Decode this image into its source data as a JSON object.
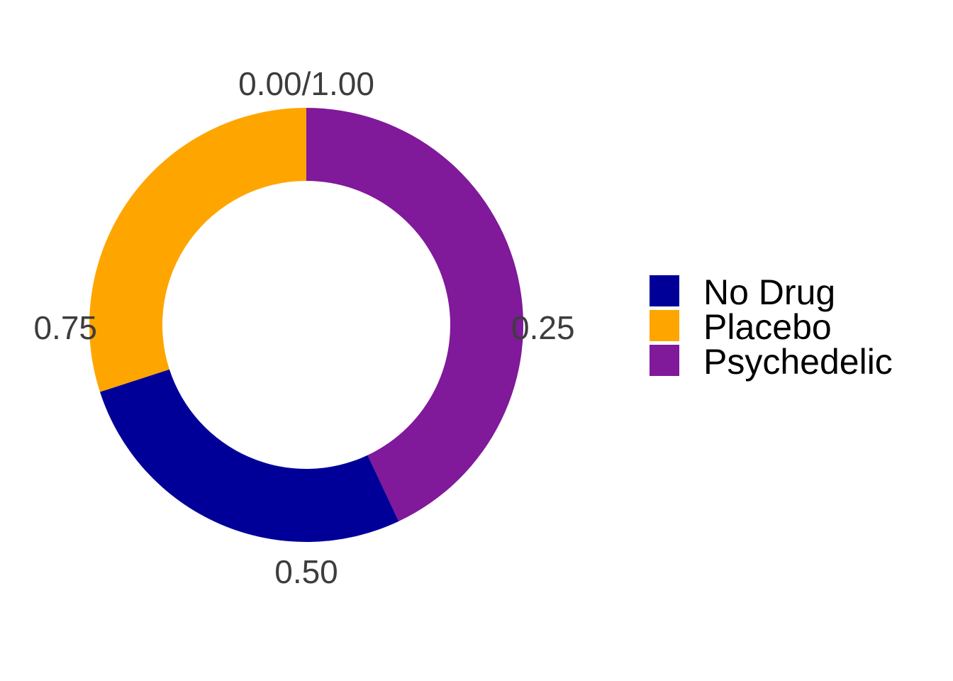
{
  "chart_data": {
    "type": "pie",
    "style": "donut",
    "categories": [
      "No Drug",
      "Placebo",
      "Psychedelic"
    ],
    "values": [
      0.27,
      0.3,
      0.43
    ],
    "colors": {
      "No Drug": "#000099",
      "Placebo": "#FFA500",
      "Psychedelic": "#80199A"
    },
    "slice_order": [
      "Psychedelic",
      "No Drug",
      "Placebo"
    ],
    "direction": "clockwise",
    "start_angle": "top",
    "ticks": [
      {
        "value": 0.0,
        "label": "0.00/1.00"
      },
      {
        "value": 0.25,
        "label": "0.25"
      },
      {
        "value": 0.5,
        "label": "0.50"
      },
      {
        "value": 0.75,
        "label": "0.75"
      }
    ],
    "legend": {
      "position": "right",
      "entries": [
        "No Drug",
        "Placebo",
        "Psychedelic"
      ]
    },
    "grid": false
  }
}
